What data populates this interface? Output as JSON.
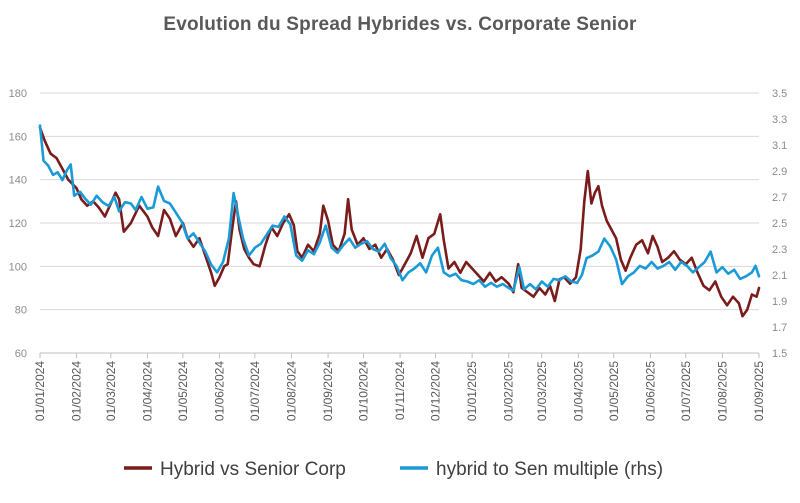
{
  "chart_data": {
    "type": "line",
    "title": "Evolution du Spread Hybrides vs. Corporate Senior",
    "xlabel": "",
    "ylabel": "",
    "x_ticks": [
      "01/01/2024",
      "01/02/2024",
      "01/03/2024",
      "01/04/2024",
      "01/05/2024",
      "01/06/2024",
      "01/07/2024",
      "01/08/2024",
      "01/09/2024",
      "01/10/2024",
      "01/11/2024",
      "01/12/2024",
      "01/01/2025",
      "01/02/2025",
      "01/03/2025",
      "01/04/2025",
      "01/05/2025",
      "01/06/2025",
      "01/07/2025",
      "01/08/2025",
      "01/09/2025"
    ],
    "y_left": {
      "min": 60,
      "max": 180,
      "ticks": [
        60,
        80,
        100,
        120,
        140,
        160,
        180
      ]
    },
    "y_right": {
      "min": 1.5,
      "max": 3.5,
      "ticks": [
        "1.5",
        "1.7",
        "1.9",
        "2.1",
        "2.3",
        "2.5",
        "2.7",
        "2.9",
        "3.1",
        "3.3",
        "3.5"
      ]
    },
    "grid": "horizontal",
    "legend_position": "bottom",
    "series": [
      {
        "name": "Hybrid vs Senior Corp",
        "axis": "left",
        "color": "#7b1c1c",
        "points": [
          [
            "2024-01-01",
            164
          ],
          [
            "2024-01-05",
            158
          ],
          [
            "2024-01-10",
            152
          ],
          [
            "2024-01-15",
            150
          ],
          [
            "2024-01-20",
            145
          ],
          [
            "2024-01-25",
            140
          ],
          [
            "2024-02-01",
            136
          ],
          [
            "2024-02-05",
            131
          ],
          [
            "2024-02-10",
            128
          ],
          [
            "2024-02-15",
            130
          ],
          [
            "2024-02-20",
            127
          ],
          [
            "2024-02-25",
            123
          ],
          [
            "2024-03-01",
            129
          ],
          [
            "2024-03-05",
            134
          ],
          [
            "2024-03-08",
            131
          ],
          [
            "2024-03-12",
            116
          ],
          [
            "2024-03-18",
            120
          ],
          [
            "2024-03-25",
            128
          ],
          [
            "2024-04-01",
            123
          ],
          [
            "2024-04-05",
            118
          ],
          [
            "2024-04-10",
            114
          ],
          [
            "2024-04-15",
            126
          ],
          [
            "2024-04-20",
            122
          ],
          [
            "2024-04-25",
            114
          ],
          [
            "2024-05-01",
            120
          ],
          [
            "2024-05-05",
            113
          ],
          [
            "2024-05-10",
            109
          ],
          [
            "2024-05-15",
            113
          ],
          [
            "2024-05-20",
            105
          ],
          [
            "2024-05-25",
            97
          ],
          [
            "2024-05-28",
            91
          ],
          [
            "2024-06-01",
            95
          ],
          [
            "2024-06-05",
            100
          ],
          [
            "2024-06-08",
            101
          ],
          [
            "2024-06-12",
            118
          ],
          [
            "2024-06-15",
            130
          ],
          [
            "2024-06-18",
            117
          ],
          [
            "2024-06-22",
            108
          ],
          [
            "2024-06-26",
            104
          ],
          [
            "2024-06-30",
            101
          ],
          [
            "2024-07-05",
            100
          ],
          [
            "2024-07-10",
            110
          ],
          [
            "2024-07-15",
            118
          ],
          [
            "2024-07-20",
            114
          ],
          [
            "2024-07-25",
            120
          ],
          [
            "2024-07-30",
            124
          ],
          [
            "2024-08-03",
            119
          ],
          [
            "2024-08-06",
            107
          ],
          [
            "2024-08-10",
            104
          ],
          [
            "2024-08-15",
            110
          ],
          [
            "2024-08-20",
            107
          ],
          [
            "2024-08-25",
            115
          ],
          [
            "2024-08-28",
            128
          ],
          [
            "2024-09-01",
            121
          ],
          [
            "2024-09-05",
            110
          ],
          [
            "2024-09-10",
            107
          ],
          [
            "2024-09-15",
            115
          ],
          [
            "2024-09-18",
            131
          ],
          [
            "2024-09-21",
            117
          ],
          [
            "2024-09-26",
            110
          ],
          [
            "2024-10-01",
            113
          ],
          [
            "2024-10-06",
            108
          ],
          [
            "2024-10-11",
            110
          ],
          [
            "2024-10-16",
            104
          ],
          [
            "2024-10-21",
            108
          ],
          [
            "2024-10-26",
            103
          ],
          [
            "2024-10-31",
            96
          ],
          [
            "2024-11-05",
            101
          ],
          [
            "2024-11-10",
            106
          ],
          [
            "2024-11-15",
            114
          ],
          [
            "2024-11-20",
            104
          ],
          [
            "2024-11-25",
            113
          ],
          [
            "2024-11-30",
            115
          ],
          [
            "2024-12-05",
            124
          ],
          [
            "2024-12-08",
            112
          ],
          [
            "2024-12-12",
            99
          ],
          [
            "2024-12-17",
            102
          ],
          [
            "2024-12-22",
            97
          ],
          [
            "2024-12-27",
            102
          ],
          [
            "2025-01-01",
            99
          ],
          [
            "2025-01-06",
            96
          ],
          [
            "2025-01-11",
            93
          ],
          [
            "2025-01-16",
            97
          ],
          [
            "2025-01-21",
            93
          ],
          [
            "2025-01-26",
            95
          ],
          [
            "2025-02-01",
            92
          ],
          [
            "2025-02-05",
            88
          ],
          [
            "2025-02-09",
            101
          ],
          [
            "2025-02-12",
            90
          ],
          [
            "2025-02-17",
            88
          ],
          [
            "2025-02-22",
            86
          ],
          [
            "2025-02-27",
            90
          ],
          [
            "2025-03-04",
            87
          ],
          [
            "2025-03-08",
            91
          ],
          [
            "2025-03-12",
            84
          ],
          [
            "2025-03-16",
            94
          ],
          [
            "2025-03-20",
            95
          ],
          [
            "2025-03-25",
            92
          ],
          [
            "2025-03-30",
            95
          ],
          [
            "2025-04-03",
            108
          ],
          [
            "2025-04-06",
            130
          ],
          [
            "2025-04-09",
            144
          ],
          [
            "2025-04-12",
            129
          ],
          [
            "2025-04-15",
            134
          ],
          [
            "2025-04-18",
            137
          ],
          [
            "2025-04-21",
            128
          ],
          [
            "2025-04-25",
            121
          ],
          [
            "2025-04-29",
            117
          ],
          [
            "2025-05-03",
            113
          ],
          [
            "2025-05-07",
            103
          ],
          [
            "2025-05-11",
            98
          ],
          [
            "2025-05-15",
            104
          ],
          [
            "2025-05-20",
            110
          ],
          [
            "2025-05-25",
            112
          ],
          [
            "2025-05-30",
            106
          ],
          [
            "2025-06-03",
            114
          ],
          [
            "2025-06-07",
            109
          ],
          [
            "2025-06-11",
            102
          ],
          [
            "2025-06-16",
            104
          ],
          [
            "2025-06-21",
            107
          ],
          [
            "2025-06-26",
            103
          ],
          [
            "2025-07-01",
            101
          ],
          [
            "2025-07-06",
            104
          ],
          [
            "2025-07-11",
            97
          ],
          [
            "2025-07-16",
            91
          ],
          [
            "2025-07-21",
            89
          ],
          [
            "2025-07-26",
            93
          ],
          [
            "2025-07-31",
            86
          ],
          [
            "2025-08-05",
            82
          ],
          [
            "2025-08-10",
            86
          ],
          [
            "2025-08-15",
            83
          ],
          [
            "2025-08-18",
            77
          ],
          [
            "2025-08-22",
            80
          ],
          [
            "2025-08-26",
            87
          ],
          [
            "2025-08-30",
            86
          ],
          [
            "2025-09-01",
            90
          ]
        ]
      },
      {
        "name": "hybrid to Sen multiple (rhs)",
        "axis": "right",
        "color": "#1a9bd7",
        "points": [
          [
            "2024-01-01",
            3.25
          ],
          [
            "2024-01-04",
            2.98
          ],
          [
            "2024-01-08",
            2.94
          ],
          [
            "2024-01-12",
            2.87
          ],
          [
            "2024-01-16",
            2.89
          ],
          [
            "2024-01-20",
            2.83
          ],
          [
            "2024-01-24",
            2.91
          ],
          [
            "2024-01-27",
            2.95
          ],
          [
            "2024-01-30",
            2.71
          ],
          [
            "2024-02-04",
            2.74
          ],
          [
            "2024-02-08",
            2.69
          ],
          [
            "2024-02-13",
            2.64
          ],
          [
            "2024-02-18",
            2.71
          ],
          [
            "2024-02-23",
            2.66
          ],
          [
            "2024-02-28",
            2.63
          ],
          [
            "2024-03-04",
            2.7
          ],
          [
            "2024-03-08",
            2.59
          ],
          [
            "2024-03-13",
            2.66
          ],
          [
            "2024-03-18",
            2.65
          ],
          [
            "2024-03-22",
            2.6
          ],
          [
            "2024-03-27",
            2.7
          ],
          [
            "2024-04-01",
            2.61
          ],
          [
            "2024-04-06",
            2.62
          ],
          [
            "2024-04-10",
            2.78
          ],
          [
            "2024-04-15",
            2.67
          ],
          [
            "2024-04-20",
            2.65
          ],
          [
            "2024-04-25",
            2.58
          ],
          [
            "2024-04-30",
            2.51
          ],
          [
            "2024-05-05",
            2.38
          ],
          [
            "2024-05-10",
            2.42
          ],
          [
            "2024-05-15",
            2.35
          ],
          [
            "2024-05-20",
            2.28
          ],
          [
            "2024-05-25",
            2.18
          ],
          [
            "2024-05-30",
            2.12
          ],
          [
            "2024-06-04",
            2.2
          ],
          [
            "2024-06-09",
            2.38
          ],
          [
            "2024-06-13",
            2.73
          ],
          [
            "2024-06-17",
            2.55
          ],
          [
            "2024-06-21",
            2.38
          ],
          [
            "2024-06-26",
            2.25
          ],
          [
            "2024-07-01",
            2.31
          ],
          [
            "2024-07-06",
            2.34
          ],
          [
            "2024-07-11",
            2.41
          ],
          [
            "2024-07-16",
            2.48
          ],
          [
            "2024-07-21",
            2.47
          ],
          [
            "2024-07-26",
            2.55
          ],
          [
            "2024-07-31",
            2.49
          ],
          [
            "2024-08-05",
            2.25
          ],
          [
            "2024-08-10",
            2.21
          ],
          [
            "2024-08-15",
            2.29
          ],
          [
            "2024-08-20",
            2.26
          ],
          [
            "2024-08-25",
            2.35
          ],
          [
            "2024-08-30",
            2.48
          ],
          [
            "2024-09-04",
            2.31
          ],
          [
            "2024-09-09",
            2.27
          ],
          [
            "2024-09-14",
            2.33
          ],
          [
            "2024-09-19",
            2.38
          ],
          [
            "2024-09-24",
            2.31
          ],
          [
            "2024-09-29",
            2.34
          ],
          [
            "2024-10-04",
            2.36
          ],
          [
            "2024-10-09",
            2.3
          ],
          [
            "2024-10-14",
            2.28
          ],
          [
            "2024-10-19",
            2.34
          ],
          [
            "2024-10-24",
            2.23
          ],
          [
            "2024-10-29",
            2.17
          ],
          [
            "2024-11-03",
            2.06
          ],
          [
            "2024-11-08",
            2.12
          ],
          [
            "2024-11-13",
            2.15
          ],
          [
            "2024-11-18",
            2.19
          ],
          [
            "2024-11-23",
            2.12
          ],
          [
            "2024-11-28",
            2.25
          ],
          [
            "2024-12-03",
            2.31
          ],
          [
            "2024-12-08",
            2.12
          ],
          [
            "2024-12-13",
            2.09
          ],
          [
            "2024-12-18",
            2.11
          ],
          [
            "2024-12-23",
            2.06
          ],
          [
            "2024-12-28",
            2.05
          ],
          [
            "2025-01-02",
            2.03
          ],
          [
            "2025-01-07",
            2.06
          ],
          [
            "2025-01-12",
            2.01
          ],
          [
            "2025-01-17",
            2.04
          ],
          [
            "2025-01-22",
            2.01
          ],
          [
            "2025-01-27",
            2.03
          ],
          [
            "2025-02-01",
            2.0
          ],
          [
            "2025-02-05",
            1.98
          ],
          [
            "2025-02-10",
            2.16
          ],
          [
            "2025-02-14",
            1.99
          ],
          [
            "2025-02-19",
            2.03
          ],
          [
            "2025-02-24",
            1.99
          ],
          [
            "2025-03-01",
            2.05
          ],
          [
            "2025-03-06",
            2.01
          ],
          [
            "2025-03-11",
            2.07
          ],
          [
            "2025-03-16",
            2.06
          ],
          [
            "2025-03-21",
            2.09
          ],
          [
            "2025-03-26",
            2.05
          ],
          [
            "2025-03-31",
            2.04
          ],
          [
            "2025-04-04",
            2.1
          ],
          [
            "2025-04-08",
            2.23
          ],
          [
            "2025-04-13",
            2.25
          ],
          [
            "2025-04-18",
            2.28
          ],
          [
            "2025-04-23",
            2.38
          ],
          [
            "2025-04-28",
            2.32
          ],
          [
            "2025-05-03",
            2.22
          ],
          [
            "2025-05-08",
            2.03
          ],
          [
            "2025-05-13",
            2.09
          ],
          [
            "2025-05-18",
            2.12
          ],
          [
            "2025-05-23",
            2.17
          ],
          [
            "2025-05-28",
            2.15
          ],
          [
            "2025-06-02",
            2.2
          ],
          [
            "2025-06-07",
            2.15
          ],
          [
            "2025-06-12",
            2.17
          ],
          [
            "2025-06-17",
            2.2
          ],
          [
            "2025-06-22",
            2.14
          ],
          [
            "2025-06-27",
            2.2
          ],
          [
            "2025-07-02",
            2.17
          ],
          [
            "2025-07-07",
            2.12
          ],
          [
            "2025-07-12",
            2.16
          ],
          [
            "2025-07-17",
            2.2
          ],
          [
            "2025-07-22",
            2.28
          ],
          [
            "2025-07-27",
            2.12
          ],
          [
            "2025-08-01",
            2.16
          ],
          [
            "2025-08-06",
            2.11
          ],
          [
            "2025-08-11",
            2.14
          ],
          [
            "2025-08-16",
            2.07
          ],
          [
            "2025-08-21",
            2.09
          ],
          [
            "2025-08-26",
            2.12
          ],
          [
            "2025-08-29",
            2.17
          ],
          [
            "2025-09-01",
            2.09
          ]
        ]
      }
    ]
  }
}
